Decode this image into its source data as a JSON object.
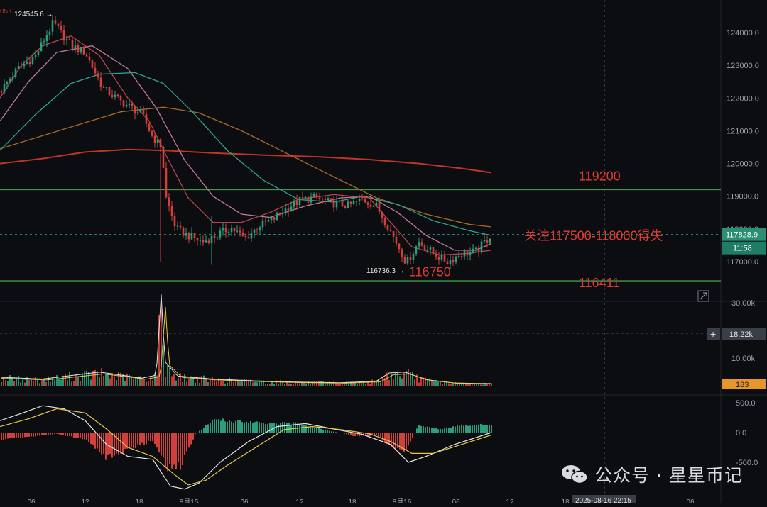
{
  "chart_data": {
    "type": "candlestick",
    "title": "",
    "price_axis": {
      "ticks": [
        "124000.0",
        "123000.0",
        "122000.0",
        "121000.0",
        "120000.0",
        "119000.0",
        "118000.0",
        "117000.0"
      ],
      "ylim": [
        116000,
        125000
      ]
    },
    "volume_axis": {
      "ticks": [
        "30.00k",
        "10.00k"
      ],
      "ylim": [
        0,
        35000
      ]
    },
    "macd_axis": {
      "ticks": [
        "500.0",
        "0.0",
        "-500.0"
      ],
      "ylim": [
        -650,
        650
      ]
    },
    "time_axis": {
      "ticks": [
        "06",
        "12",
        "18",
        "8月15",
        "06",
        "12",
        "18",
        "8月16",
        "06",
        "12",
        "18",
        "06"
      ]
    },
    "current_price_label": "117828.9",
    "countdown_label": "11:58",
    "crosshair_volume_label": "18.22k",
    "current_volume_label": "183",
    "crosshair_time_label": "2025-08-16 22:15",
    "top_left_label": "05.0",
    "high_marker": {
      "label": "124545.6",
      "value": 124545.6
    },
    "low_marker": {
      "label": "116736.3",
      "value": 116736.3
    },
    "support_resistance": [
      {
        "value": 119200,
        "label": "119200",
        "color": "#3e9a48"
      },
      {
        "value": 116411,
        "label": "116411",
        "color": "#3e9a48"
      }
    ],
    "annotations": [
      {
        "text": "关注117500-118000得失",
        "price": 117828.9
      },
      {
        "text": "116750",
        "price": 116750
      }
    ],
    "moving_averages": [
      {
        "color": "#c0342b",
        "points": [
          [
            0,
            120000
          ],
          [
            60,
            120150
          ],
          [
            120,
            120350
          ],
          [
            180,
            120430
          ],
          [
            230,
            120400
          ],
          [
            300,
            120320
          ],
          [
            380,
            120250
          ],
          [
            450,
            120200
          ],
          [
            520,
            120120
          ],
          [
            590,
            120000
          ],
          [
            650,
            119850
          ],
          [
            692,
            119720
          ]
        ]
      },
      {
        "color": "#a86a2a",
        "points": [
          [
            0,
            120450
          ],
          [
            60,
            120850
          ],
          [
            120,
            121250
          ],
          [
            170,
            121580
          ],
          [
            230,
            121720
          ],
          [
            280,
            121550
          ],
          [
            340,
            121000
          ],
          [
            400,
            120350
          ],
          [
            460,
            119700
          ],
          [
            530,
            118950
          ],
          [
            600,
            118450
          ],
          [
            660,
            118140
          ],
          [
            692,
            118060
          ]
        ]
      },
      {
        "color": "#2fa390",
        "points": [
          [
            0,
            120400
          ],
          [
            50,
            121500
          ],
          [
            100,
            122450
          ],
          [
            140,
            122730
          ],
          [
            190,
            122780
          ],
          [
            230,
            122450
          ],
          [
            270,
            121600
          ],
          [
            320,
            120400
          ],
          [
            370,
            119500
          ],
          [
            420,
            118900
          ],
          [
            470,
            118820
          ],
          [
            510,
            119000
          ],
          [
            560,
            118750
          ],
          [
            610,
            118250
          ],
          [
            660,
            117950
          ],
          [
            692,
            117800
          ]
        ]
      },
      {
        "color": "#c47a9a",
        "points": [
          [
            0,
            121300
          ],
          [
            40,
            122500
          ],
          [
            80,
            123400
          ],
          [
            130,
            123600
          ],
          [
            180,
            122900
          ],
          [
            220,
            121700
          ],
          [
            260,
            120100
          ],
          [
            300,
            119000
          ],
          [
            340,
            118450
          ],
          [
            380,
            118350
          ],
          [
            430,
            118700
          ],
          [
            480,
            118950
          ],
          [
            520,
            119000
          ],
          [
            560,
            118500
          ],
          [
            600,
            117800
          ],
          [
            640,
            117350
          ],
          [
            670,
            117350
          ],
          [
            692,
            117550
          ]
        ]
      },
      {
        "color": "#b8444d",
        "points": [
          [
            0,
            122000
          ],
          [
            30,
            123000
          ],
          [
            60,
            123600
          ],
          [
            100,
            123900
          ],
          [
            140,
            123300
          ],
          [
            180,
            122000
          ],
          [
            210,
            121300
          ],
          [
            235,
            120200
          ],
          [
            265,
            118950
          ],
          [
            300,
            118200
          ],
          [
            340,
            118200
          ],
          [
            380,
            118500
          ],
          [
            420,
            118900
          ],
          [
            470,
            119050
          ],
          [
            520,
            118950
          ],
          [
            550,
            118200
          ],
          [
            580,
            117450
          ],
          [
            620,
            117200
          ],
          [
            660,
            117250
          ],
          [
            692,
            117350
          ]
        ]
      }
    ],
    "candles_key": [
      [
        0,
        122200
      ],
      [
        25,
        122900
      ],
      [
        50,
        123300
      ],
      [
        75,
        124300
      ],
      [
        100,
        123600
      ],
      [
        120,
        123400
      ],
      [
        145,
        122300
      ],
      [
        170,
        121900
      ],
      [
        200,
        121500
      ],
      [
        215,
        120800
      ],
      [
        228,
        120500
      ],
      [
        233,
        119000
      ],
      [
        248,
        118000
      ],
      [
        265,
        117800
      ],
      [
        285,
        117600
      ],
      [
        305,
        117800
      ],
      [
        325,
        118050
      ],
      [
        345,
        117700
      ],
      [
        365,
        118100
      ],
      [
        385,
        118300
      ],
      [
        405,
        118650
      ],
      [
        425,
        118900
      ],
      [
        445,
        118950
      ],
      [
        465,
        118800
      ],
      [
        490,
        118700
      ],
      [
        510,
        118900
      ],
      [
        530,
        118700
      ],
      [
        548,
        118000
      ],
      [
        565,
        117300
      ],
      [
        572,
        116950
      ],
      [
        590,
        117600
      ],
      [
        610,
        117250
      ],
      [
        630,
        117000
      ],
      [
        650,
        117250
      ],
      [
        670,
        117300
      ],
      [
        692,
        117830
      ]
    ],
    "volume_key": [
      [
        0,
        2800
      ],
      [
        60,
        2200
      ],
      [
        140,
        4500
      ],
      [
        200,
        2500
      ],
      [
        220,
        3500
      ],
      [
        227,
        30000
      ],
      [
        232,
        8000
      ],
      [
        250,
        3200
      ],
      [
        300,
        2200
      ],
      [
        360,
        1600
      ],
      [
        420,
        1200
      ],
      [
        480,
        1000
      ],
      [
        530,
        1500
      ],
      [
        548,
        4200
      ],
      [
        570,
        4500
      ],
      [
        600,
        2000
      ],
      [
        640,
        900
      ],
      [
        692,
        700
      ]
    ],
    "macd_key": [
      [
        0,
        -120
      ],
      [
        40,
        -70
      ],
      [
        80,
        -20
      ],
      [
        120,
        -120
      ],
      [
        150,
        -420
      ],
      [
        180,
        -300
      ],
      [
        215,
        -130
      ],
      [
        235,
        -600
      ],
      [
        255,
        -550
      ],
      [
        275,
        -30
      ],
      [
        300,
        210
      ],
      [
        340,
        190
      ],
      [
        380,
        160
      ],
      [
        420,
        150
      ],
      [
        460,
        40
      ],
      [
        500,
        -60
      ],
      [
        530,
        -50
      ],
      [
        555,
        -280
      ],
      [
        570,
        -330
      ],
      [
        590,
        130
      ],
      [
        620,
        60
      ],
      [
        650,
        120
      ],
      [
        692,
        140
      ]
    ],
    "macd_line_key": [
      [
        0,
        200
      ],
      [
        30,
        320
      ],
      [
        60,
        450
      ],
      [
        90,
        400
      ],
      [
        120,
        200
      ],
      [
        150,
        -200
      ],
      [
        180,
        -400
      ],
      [
        215,
        -450
      ],
      [
        240,
        -900
      ],
      [
        260,
        -950
      ],
      [
        280,
        -850
      ],
      [
        310,
        -500
      ],
      [
        350,
        -150
      ],
      [
        390,
        100
      ],
      [
        430,
        150
      ],
      [
        470,
        60
      ],
      [
        510,
        -30
      ],
      [
        550,
        -200
      ],
      [
        575,
        -500
      ],
      [
        600,
        -400
      ],
      [
        640,
        -200
      ],
      [
        692,
        0
      ]
    ],
    "signal_line_key": [
      [
        0,
        100
      ],
      [
        40,
        230
      ],
      [
        80,
        400
      ],
      [
        120,
        330
      ],
      [
        150,
        60
      ],
      [
        180,
        -250
      ],
      [
        215,
        -400
      ],
      [
        245,
        -700
      ],
      [
        265,
        -880
      ],
      [
        290,
        -800
      ],
      [
        320,
        -550
      ],
      [
        360,
        -250
      ],
      [
        400,
        50
      ],
      [
        440,
        100
      ],
      [
        480,
        50
      ],
      [
        520,
        -20
      ],
      [
        550,
        -150
      ],
      [
        580,
        -350
      ],
      [
        610,
        -350
      ],
      [
        650,
        -200
      ],
      [
        692,
        -40
      ]
    ]
  },
  "watermark": {
    "text": "公众号 · 星星币记"
  }
}
